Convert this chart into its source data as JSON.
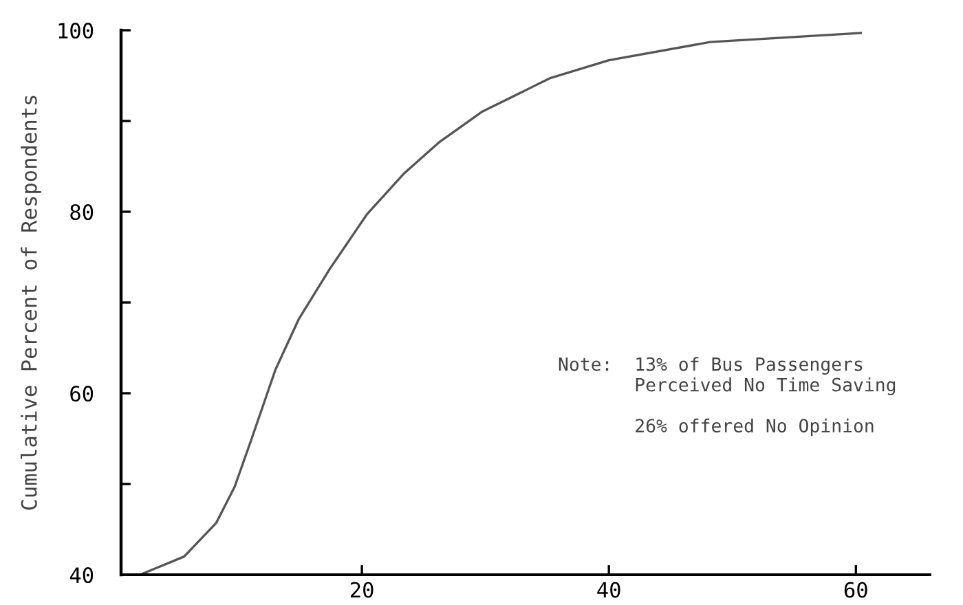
{
  "chart_data": {
    "type": "line",
    "ylabel": "Cumulative Percent of Respondents",
    "x": [
      2.2,
      5.6,
      8.2,
      9.7,
      11.1,
      13,
      14.9,
      17.4,
      20.4,
      23.4,
      26.3,
      29.7,
      35.2,
      40,
      48.2,
      60.4
    ],
    "series": [
      {
        "color": "#555555",
        "values": [
          40.1,
          42,
          45.7,
          49.7,
          55.1,
          62.6,
          68.2,
          73.7,
          79.7,
          84.2,
          87.7,
          91,
          94.7,
          96.7,
          98.7,
          99.7
        ]
      }
    ],
    "xlim": [
      0.5,
      66
    ],
    "ylim": [
      40,
      100
    ],
    "xticks": [
      20,
      40,
      60
    ],
    "yticks": [
      40,
      {
        "value": 50,
        "label": null
      },
      60,
      {
        "value": 70,
        "label": null
      },
      80,
      {
        "value": 90,
        "label": null
      },
      100
    ],
    "grid": false,
    "marker": "none",
    "line_style": "solid",
    "annotations": [
      "Note:  13% of Bus Passengers\n       Perceived No Time Saving\n\n       26% offered No Opinion"
    ]
  }
}
